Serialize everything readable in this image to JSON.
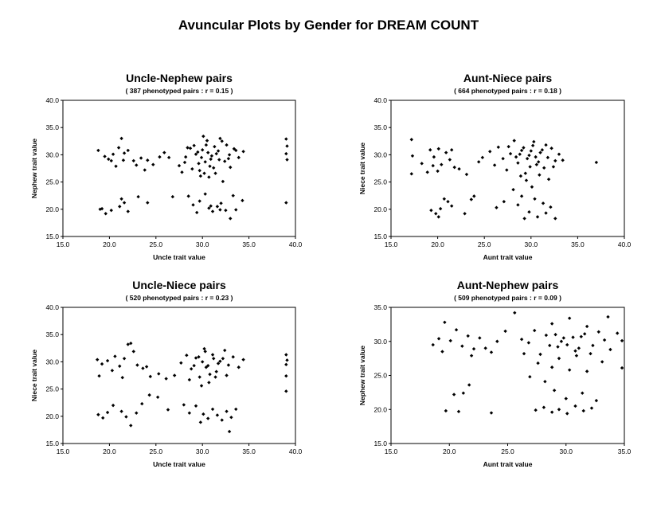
{
  "title": "Avuncular Plots by Gender for DREAM COUNT",
  "chart_data": [
    {
      "type": "scatter",
      "title": "Uncle-Nephew pairs",
      "subtitle": "( 387 phenotyped pairs : r =  0.15 )",
      "xlabel": "Uncle trait value",
      "ylabel": "Nephew trait value",
      "xlim": [
        15,
        40
      ],
      "ylim": [
        15,
        40
      ],
      "xticks": [
        "15.0",
        "20.0",
        "25.0",
        "30.0",
        "35.0",
        "40.0"
      ],
      "yticks": [
        "15.0",
        "20.0",
        "25.0",
        "30.0",
        "35.0",
        "40.0"
      ],
      "points": [
        [
          18.8,
          30.8
        ],
        [
          19.5,
          29.7
        ],
        [
          19.9,
          29.2
        ],
        [
          20.4,
          30.1
        ],
        [
          20.7,
          27.9
        ],
        [
          21.3,
          33.0
        ],
        [
          21.6,
          30.3
        ],
        [
          21.0,
          31.3
        ],
        [
          22.0,
          30.8
        ],
        [
          22.6,
          28.9
        ],
        [
          23.4,
          29.4
        ],
        [
          24.1,
          29.0
        ],
        [
          24.7,
          28.2
        ],
        [
          25.4,
          29.6
        ],
        [
          25.9,
          30.4
        ],
        [
          22.9,
          28.1
        ],
        [
          23.8,
          27.2
        ],
        [
          21.5,
          29.0
        ],
        [
          20.2,
          28.9
        ],
        [
          26.4,
          29.5
        ],
        [
          19.0,
          20.0
        ],
        [
          19.6,
          19.2
        ],
        [
          20.2,
          19.8
        ],
        [
          21.1,
          20.5
        ],
        [
          21.6,
          21.2
        ],
        [
          22.0,
          19.6
        ],
        [
          23.1,
          22.3
        ],
        [
          24.1,
          21.2
        ],
        [
          19.2,
          20.1
        ],
        [
          21.3,
          21.9
        ],
        [
          26.8,
          22.3
        ],
        [
          27.5,
          28.0
        ],
        [
          28.2,
          29.6
        ],
        [
          28.7,
          31.2
        ],
        [
          29.3,
          30.1
        ],
        [
          29.6,
          28.4
        ],
        [
          30.1,
          33.4
        ],
        [
          30.4,
          31.8
        ],
        [
          30.9,
          29.2
        ],
        [
          31.2,
          27.6
        ],
        [
          31.7,
          30.7
        ],
        [
          32.1,
          32.5
        ],
        [
          32.4,
          28.8
        ],
        [
          32.9,
          30.0
        ],
        [
          33.4,
          31.1
        ],
        [
          33.9,
          29.5
        ],
        [
          34.4,
          30.6
        ],
        [
          27.8,
          26.8
        ],
        [
          28.9,
          27.4
        ],
        [
          29.8,
          26.1
        ],
        [
          30.7,
          25.9
        ],
        [
          31.4,
          26.6
        ],
        [
          32.2,
          25.1
        ],
        [
          33.0,
          27.7
        ],
        [
          29.1,
          31.7
        ],
        [
          30.6,
          30.4
        ],
        [
          31.0,
          29.8
        ],
        [
          30.3,
          28.7
        ],
        [
          31.5,
          30.2
        ],
        [
          30.0,
          30.9
        ],
        [
          31.8,
          29.1
        ],
        [
          29.5,
          30.5
        ],
        [
          32.6,
          31.8
        ],
        [
          28.4,
          31.3
        ],
        [
          30.8,
          27.9
        ],
        [
          29.9,
          29.5
        ],
        [
          31.3,
          31.5
        ],
        [
          30.5,
          32.6
        ],
        [
          32.8,
          29.3
        ],
        [
          28.1,
          28.6
        ],
        [
          33.6,
          30.8
        ],
        [
          29.7,
          27.1
        ],
        [
          31.9,
          33.0
        ],
        [
          30.2,
          26.6
        ],
        [
          28.5,
          22.4
        ],
        [
          29.0,
          20.8
        ],
        [
          29.7,
          21.5
        ],
        [
          30.3,
          22.8
        ],
        [
          30.7,
          20.2
        ],
        [
          31.1,
          19.6
        ],
        [
          31.6,
          20.5
        ],
        [
          32.0,
          21.1
        ],
        [
          32.5,
          19.8
        ],
        [
          33.0,
          18.3
        ],
        [
          33.6,
          19.9
        ],
        [
          34.3,
          21.6
        ],
        [
          30.9,
          20.6
        ],
        [
          31.9,
          19.9
        ],
        [
          29.4,
          19.4
        ],
        [
          33.3,
          22.5
        ],
        [
          39.0,
          32.9
        ],
        [
          39.1,
          31.6
        ],
        [
          39.0,
          30.2
        ],
        [
          39.1,
          29.1
        ],
        [
          39.0,
          21.2
        ]
      ]
    },
    {
      "type": "scatter",
      "title": "Aunt-Niece pairs",
      "subtitle": "( 664 phenotyped pairs : r =  0.18 )",
      "xlabel": "Aunt trait value",
      "ylabel": "Niece trait value",
      "xlim": [
        15,
        40
      ],
      "ylim": [
        15,
        40
      ],
      "xticks": [
        "15.0",
        "20.0",
        "25.0",
        "30.0",
        "35.0",
        "40.0"
      ],
      "yticks": [
        "15.0",
        "20.0",
        "25.0",
        "30.0",
        "35.0",
        "40.0"
      ],
      "points": [
        [
          17.2,
          32.8
        ],
        [
          17.3,
          29.8
        ],
        [
          17.2,
          26.5
        ],
        [
          18.3,
          28.4
        ],
        [
          19.2,
          30.9
        ],
        [
          19.6,
          29.6
        ],
        [
          20.1,
          31.1
        ],
        [
          20.4,
          28.2
        ],
        [
          20.9,
          30.4
        ],
        [
          21.3,
          29.1
        ],
        [
          21.8,
          27.7
        ],
        [
          20.0,
          27.0
        ],
        [
          19.5,
          28.0
        ],
        [
          21.5,
          30.9
        ],
        [
          18.9,
          26.8
        ],
        [
          22.3,
          27.4
        ],
        [
          19.3,
          19.8
        ],
        [
          19.8,
          19.2
        ],
        [
          20.3,
          20.1
        ],
        [
          20.7,
          21.9
        ],
        [
          21.1,
          21.4
        ],
        [
          21.5,
          20.6
        ],
        [
          20.1,
          18.6
        ],
        [
          22.9,
          19.2
        ],
        [
          23.6,
          21.8
        ],
        [
          23.9,
          22.4
        ],
        [
          23.1,
          26.4
        ],
        [
          24.4,
          28.7
        ],
        [
          24.8,
          29.5
        ],
        [
          25.6,
          30.6
        ],
        [
          26.1,
          28.1
        ],
        [
          26.5,
          31.4
        ],
        [
          27.0,
          29.3
        ],
        [
          27.4,
          27.2
        ],
        [
          27.8,
          30.2
        ],
        [
          28.2,
          32.6
        ],
        [
          28.6,
          28.5
        ],
        [
          29.0,
          30.8
        ],
        [
          29.4,
          26.6
        ],
        [
          29.8,
          29.9
        ],
        [
          30.2,
          31.7
        ],
        [
          30.6,
          28.2
        ],
        [
          31.0,
          30.4
        ],
        [
          31.4,
          27.6
        ],
        [
          31.8,
          29.5
        ],
        [
          32.2,
          31.2
        ],
        [
          32.6,
          28.9
        ],
        [
          33.0,
          30.1
        ],
        [
          33.4,
          29.0
        ],
        [
          30.0,
          30.7
        ],
        [
          29.6,
          29.3
        ],
        [
          30.5,
          29.6
        ],
        [
          28.8,
          30.1
        ],
        [
          31.2,
          30.9
        ],
        [
          29.2,
          31.3
        ],
        [
          30.8,
          28.7
        ],
        [
          28.4,
          29.6
        ],
        [
          31.6,
          31.8
        ],
        [
          29.9,
          27.8
        ],
        [
          30.3,
          32.4
        ],
        [
          27.6,
          31.5
        ],
        [
          32.4,
          27.8
        ],
        [
          28.9,
          26.1
        ],
        [
          30.9,
          26.3
        ],
        [
          29.5,
          25.3
        ],
        [
          31.9,
          25.5
        ],
        [
          30.1,
          24.1
        ],
        [
          28.1,
          23.6
        ],
        [
          29.0,
          22.4
        ],
        [
          30.4,
          21.9
        ],
        [
          31.3,
          21.1
        ],
        [
          32.1,
          20.4
        ],
        [
          28.6,
          20.8
        ],
        [
          29.8,
          19.5
        ],
        [
          30.7,
          18.6
        ],
        [
          31.6,
          19.3
        ],
        [
          32.6,
          18.3
        ],
        [
          27.1,
          21.4
        ],
        [
          26.3,
          20.3
        ],
        [
          29.3,
          18.3
        ],
        [
          37.0,
          28.6
        ]
      ]
    },
    {
      "type": "scatter",
      "title": "Uncle-Niece pairs",
      "subtitle": "( 520 phenotyped pairs : r =  0.23 )",
      "xlabel": "Uncle trait value",
      "ylabel": "Niece trait value",
      "xlim": [
        15,
        40
      ],
      "ylim": [
        15,
        40
      ],
      "xticks": [
        "15.0",
        "20.0",
        "25.0",
        "30.0",
        "35.0",
        "40.0"
      ],
      "yticks": [
        "15.0",
        "20.0",
        "25.0",
        "30.0",
        "35.0",
        "40.0"
      ],
      "points": [
        [
          18.7,
          30.4
        ],
        [
          19.2,
          29.6
        ],
        [
          19.8,
          30.2
        ],
        [
          20.3,
          28.4
        ],
        [
          20.6,
          31.0
        ],
        [
          21.1,
          29.2
        ],
        [
          21.6,
          30.6
        ],
        [
          22.0,
          33.2
        ],
        [
          22.3,
          33.4
        ],
        [
          22.6,
          31.9
        ],
        [
          23.0,
          29.4
        ],
        [
          23.6,
          28.8
        ],
        [
          24.4,
          27.3
        ],
        [
          25.3,
          27.8
        ],
        [
          26.1,
          26.9
        ],
        [
          21.4,
          27.1
        ],
        [
          18.9,
          27.4
        ],
        [
          24.0,
          29.1
        ],
        [
          18.8,
          20.3
        ],
        [
          19.3,
          19.7
        ],
        [
          19.8,
          20.7
        ],
        [
          20.4,
          22.0
        ],
        [
          21.3,
          20.9
        ],
        [
          21.8,
          19.9
        ],
        [
          22.3,
          18.3
        ],
        [
          22.9,
          20.6
        ],
        [
          23.5,
          22.3
        ],
        [
          24.3,
          23.9
        ],
        [
          25.2,
          23.5
        ],
        [
          26.3,
          21.2
        ],
        [
          27.0,
          27.5
        ],
        [
          27.7,
          29.8
        ],
        [
          28.3,
          31.2
        ],
        [
          28.8,
          28.7
        ],
        [
          29.3,
          30.7
        ],
        [
          29.7,
          27.2
        ],
        [
          30.2,
          32.4
        ],
        [
          30.6,
          29.3
        ],
        [
          31.1,
          31.3
        ],
        [
          31.5,
          28.2
        ],
        [
          31.9,
          30.1
        ],
        [
          32.4,
          32.1
        ],
        [
          32.8,
          29.4
        ],
        [
          33.3,
          30.9
        ],
        [
          33.9,
          29.0
        ],
        [
          34.4,
          30.4
        ],
        [
          30.0,
          30.0
        ],
        [
          30.4,
          29.0
        ],
        [
          31.2,
          30.6
        ],
        [
          29.6,
          30.9
        ],
        [
          31.7,
          29.7
        ],
        [
          30.8,
          27.7
        ],
        [
          29.1,
          29.3
        ],
        [
          32.2,
          30.6
        ],
        [
          30.3,
          31.9
        ],
        [
          31.4,
          27.2
        ],
        [
          28.6,
          26.7
        ],
        [
          30.7,
          26.2
        ],
        [
          32.6,
          27.5
        ],
        [
          29.9,
          25.6
        ],
        [
          28.0,
          22.1
        ],
        [
          28.6,
          20.6
        ],
        [
          29.3,
          21.9
        ],
        [
          30.1,
          20.4
        ],
        [
          30.6,
          19.6
        ],
        [
          31.1,
          21.3
        ],
        [
          31.6,
          20.2
        ],
        [
          32.1,
          19.3
        ],
        [
          32.6,
          20.9
        ],
        [
          33.1,
          19.8
        ],
        [
          29.8,
          18.9
        ],
        [
          32.9,
          17.2
        ],
        [
          33.6,
          21.3
        ],
        [
          39.0,
          31.3
        ],
        [
          39.1,
          30.3
        ],
        [
          39.0,
          29.5
        ],
        [
          39.0,
          27.4
        ],
        [
          39.0,
          24.6
        ]
      ]
    },
    {
      "type": "scatter",
      "title": "Aunt-Nephew pairs",
      "subtitle": "( 509 phenotyped pairs : r =  0.09 )",
      "xlabel": "Aunt trait value",
      "ylabel": "Nephew trait value",
      "xlim": [
        15,
        35
      ],
      "ylim": [
        15,
        35
      ],
      "xticks": [
        "15.0",
        "20.0",
        "25.0",
        "30.0",
        "35.0"
      ],
      "yticks": [
        "15.0",
        "20.0",
        "25.0",
        "30.0",
        "35.0"
      ],
      "points": [
        [
          18.6,
          29.5
        ],
        [
          19.1,
          30.4
        ],
        [
          19.6,
          32.8
        ],
        [
          20.1,
          30.1
        ],
        [
          20.6,
          31.7
        ],
        [
          21.1,
          29.3
        ],
        [
          21.6,
          30.8
        ],
        [
          22.1,
          28.9
        ],
        [
          22.6,
          30.5
        ],
        [
          23.1,
          29.0
        ],
        [
          23.6,
          28.4
        ],
        [
          24.1,
          30.0
        ],
        [
          24.8,
          31.5
        ],
        [
          19.4,
          28.5
        ],
        [
          21.9,
          27.9
        ],
        [
          20.4,
          22.2
        ],
        [
          21.2,
          22.4
        ],
        [
          21.7,
          23.6
        ],
        [
          19.7,
          19.8
        ],
        [
          20.8,
          19.7
        ],
        [
          23.6,
          19.5
        ],
        [
          25.6,
          34.2
        ],
        [
          26.2,
          30.3
        ],
        [
          26.8,
          29.8
        ],
        [
          27.3,
          31.6
        ],
        [
          27.8,
          28.1
        ],
        [
          28.3,
          30.9
        ],
        [
          28.8,
          32.6
        ],
        [
          29.3,
          29.2
        ],
        [
          29.8,
          30.5
        ],
        [
          30.3,
          33.4
        ],
        [
          30.8,
          28.6
        ],
        [
          31.3,
          30.7
        ],
        [
          31.8,
          32.2
        ],
        [
          32.3,
          29.4
        ],
        [
          32.8,
          31.4
        ],
        [
          33.3,
          30.2
        ],
        [
          33.8,
          28.8
        ],
        [
          34.4,
          31.2
        ],
        [
          34.8,
          30.1
        ],
        [
          29.6,
          30.0
        ],
        [
          30.1,
          29.5
        ],
        [
          30.6,
          30.6
        ],
        [
          29.1,
          31.0
        ],
        [
          31.1,
          29.0
        ],
        [
          28.6,
          29.4
        ],
        [
          31.6,
          31.1
        ],
        [
          30.9,
          27.9
        ],
        [
          29.4,
          27.5
        ],
        [
          32.1,
          28.2
        ],
        [
          27.6,
          26.8
        ],
        [
          28.8,
          26.2
        ],
        [
          30.3,
          25.8
        ],
        [
          31.8,
          25.6
        ],
        [
          33.1,
          27.0
        ],
        [
          34.8,
          26.1
        ],
        [
          28.2,
          24.1
        ],
        [
          29.0,
          22.8
        ],
        [
          30.0,
          21.6
        ],
        [
          31.4,
          22.4
        ],
        [
          26.9,
          24.8
        ],
        [
          27.4,
          19.9
        ],
        [
          28.1,
          20.3
        ],
        [
          28.8,
          19.6
        ],
        [
          29.4,
          20.0
        ],
        [
          30.1,
          19.4
        ],
        [
          30.8,
          20.5
        ],
        [
          31.5,
          19.8
        ],
        [
          32.2,
          20.2
        ],
        [
          32.6,
          21.3
        ],
        [
          26.4,
          28.2
        ],
        [
          33.6,
          33.6
        ]
      ]
    }
  ]
}
